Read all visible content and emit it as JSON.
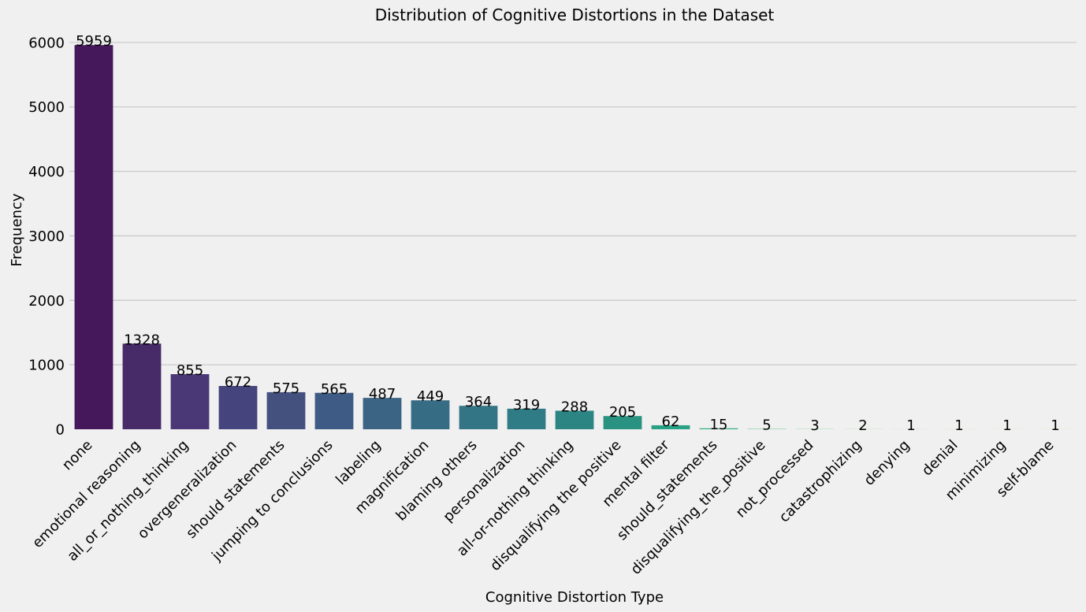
{
  "chart_data": {
    "type": "bar",
    "title": "Distribution of Cognitive Distortions in the Dataset",
    "xlabel": "Cognitive Distortion Type",
    "ylabel": "Frequency",
    "ylim": [
      0,
      6200
    ],
    "yticks": [
      0,
      1000,
      2000,
      3000,
      4000,
      5000,
      6000
    ],
    "grid": "horizontal",
    "colormap": "viridis",
    "categories": [
      "none",
      "emotional reasoning",
      "all_or_nothing_thinking",
      "overgeneralization",
      "should statements",
      "jumping to conclusions",
      "labeling",
      "magnification",
      "blaming others",
      "personalization",
      "all-or-nothing thinking",
      "disqualifying the positive",
      "mental filter",
      "should_statements",
      "disqualifying_the_positive",
      "not_processed",
      "catastrophizing",
      "denying",
      "denial",
      "minimizing",
      "self-blame"
    ],
    "values": [
      5959,
      1328,
      855,
      672,
      575,
      565,
      487,
      449,
      364,
      319,
      288,
      205,
      62,
      15,
      5,
      3,
      2,
      1,
      1,
      1,
      1
    ],
    "colors": [
      "#45185b",
      "#472a68",
      "#4a3776",
      "#46447c",
      "#44517f",
      "#3e5b85",
      "#3b6384",
      "#376c85",
      "#337485",
      "#307c86",
      "#2d8583",
      "#2a9281",
      "#28a284",
      "#30b07d",
      "#44be72",
      "#57c76a",
      "#72d05a",
      "#8ed84b",
      "#aade3c",
      "#c6e230",
      "#e0e52a"
    ]
  }
}
